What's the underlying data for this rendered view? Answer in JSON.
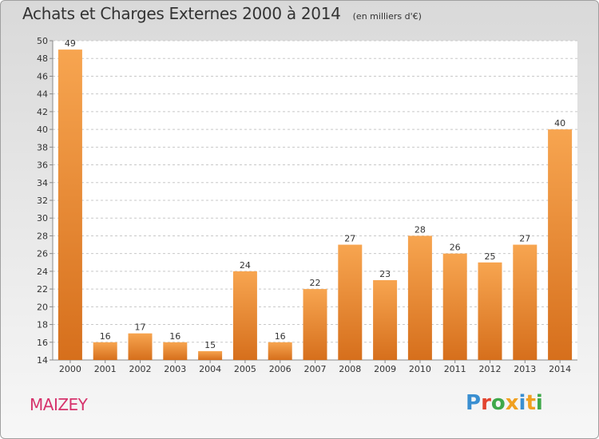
{
  "page": {
    "title": "Achats et Charges Externes 2000 à 2014",
    "subtitle": "(en milliers d'€)",
    "place": "MAIZEY",
    "logo": "Proxiti"
  },
  "colors": {
    "bar_light": "#f7a550",
    "bar_dark": "#d66f1c",
    "logo": [
      "#3a8fd1",
      "#e2442f",
      "#3fa84a",
      "#f0a020",
      "#3a8fd1",
      "#f0a020",
      "#3fa84a"
    ]
  },
  "chart_data": {
    "type": "bar",
    "categories": [
      "2000",
      "2001",
      "2002",
      "2003",
      "2004",
      "2005",
      "2006",
      "2007",
      "2008",
      "2009",
      "2010",
      "2011",
      "2012",
      "2013",
      "2014"
    ],
    "values": [
      49,
      16,
      17,
      16,
      15,
      24,
      16,
      22,
      27,
      23,
      28,
      26,
      25,
      27,
      40
    ],
    "ylim": [
      14,
      50
    ],
    "yticks": [
      14,
      16,
      18,
      20,
      22,
      24,
      26,
      28,
      30,
      32,
      34,
      36,
      38,
      40,
      42,
      44,
      46,
      48,
      50
    ],
    "grid": true,
    "data_labels": true
  }
}
